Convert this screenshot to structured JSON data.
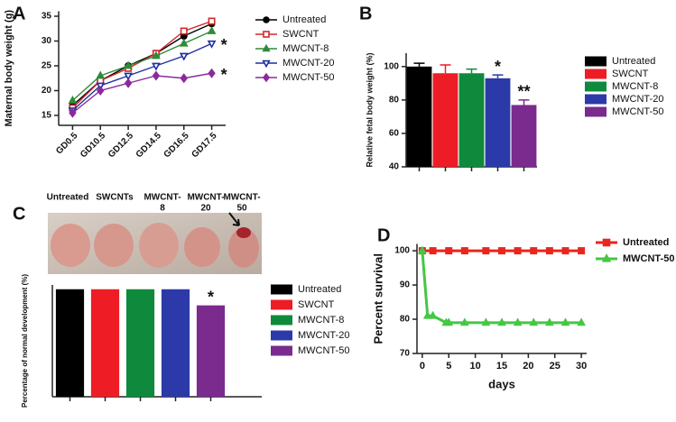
{
  "chart_data": [
    {
      "type": "line",
      "panel": "A",
      "ylabel": "Maternal body weight (g)",
      "categories": [
        "GD0.5",
        "GD10.5",
        "GD12.5",
        "GD14.5",
        "GD16.5",
        "GD17.5"
      ],
      "ylim": [
        13,
        36
      ],
      "yticks": [
        15,
        20,
        25,
        30,
        35
      ],
      "series": [
        {
          "name": "Untreated",
          "color": "#000000",
          "marker": "circle",
          "filled": true,
          "values": [
            17,
            22,
            25,
            27.5,
            31,
            33.5
          ]
        },
        {
          "name": "SWCNT",
          "color": "#d62728",
          "marker": "square",
          "filled": false,
          "values": [
            16.5,
            22,
            24.5,
            27.5,
            32,
            34
          ]
        },
        {
          "name": "MWCNT-8",
          "color": "#2e8b3a",
          "marker": "triangle",
          "filled": true,
          "values": [
            18,
            23,
            25,
            27,
            29.5,
            32
          ]
        },
        {
          "name": "MWCNT-20",
          "color": "#1f2fa0",
          "marker": "triangle-down",
          "filled": false,
          "values": [
            16,
            21,
            23,
            25,
            27,
            29.5
          ]
        },
        {
          "name": "MWCNT-50",
          "color": "#8b2a9b",
          "marker": "diamond",
          "filled": true,
          "values": [
            15.5,
            20,
            21.5,
            23,
            22.5,
            23.5
          ]
        }
      ],
      "annotations": [
        "*",
        "*"
      ]
    },
    {
      "type": "bar",
      "panel": "B",
      "ylabel": "Relative fetal body weight (%)",
      "ylim": [
        40,
        108
      ],
      "yticks": [
        40,
        60,
        80,
        100
      ],
      "series": [
        {
          "name": "Untreated",
          "color": "#000000",
          "values": [
            100
          ],
          "errors": [
            2
          ]
        },
        {
          "name": "SWCNT",
          "color": "#ee1c24",
          "values": [
            96
          ],
          "errors": [
            5
          ]
        },
        {
          "name": "MWCNT-8",
          "color": "#0f8a3c",
          "values": [
            96
          ],
          "errors": [
            2.5
          ]
        },
        {
          "name": "MWCNT-20",
          "color": "#2b3aa8",
          "values": [
            93
          ],
          "errors": [
            2
          ]
        },
        {
          "name": "MWCNT-50",
          "color": "#7b2a8e",
          "values": [
            77
          ],
          "errors": [
            3
          ]
        }
      ],
      "annotations": [
        "*",
        "**"
      ]
    },
    {
      "type": "bar",
      "panel": "C",
      "ylabel": "Percentage of normal development (%)",
      "ylim": [
        0,
        104
      ],
      "photo_labels": [
        [
          "Untreated"
        ],
        [
          "SWCNTs"
        ],
        [
          "MWCNT-",
          "8"
        ],
        [
          "MWCNT-",
          "20"
        ],
        [
          "MWCNT-",
          "50"
        ]
      ],
      "series": [
        {
          "name": "Untreated",
          "color": "#000000",
          "values": [
            100
          ]
        },
        {
          "name": "SWCNT",
          "color": "#ee1c24",
          "values": [
            100
          ]
        },
        {
          "name": "MWCNT-8",
          "color": "#0f8a3c",
          "values": [
            100
          ]
        },
        {
          "name": "MWCNT-20",
          "color": "#2b3aa8",
          "values": [
            100
          ]
        },
        {
          "name": "MWCNT-50",
          "color": "#7b2a8e",
          "values": [
            85
          ]
        }
      ],
      "annotations": [
        "*"
      ]
    },
    {
      "type": "line",
      "panel": "D",
      "xlabel": "days",
      "ylabel": "Percent survival",
      "xlim": [
        -1,
        31
      ],
      "xticks": [
        0,
        5,
        10,
        15,
        20,
        25,
        30
      ],
      "ylim": [
        70,
        102
      ],
      "yticks": [
        70,
        80,
        90,
        100
      ],
      "series": [
        {
          "name": "Untreated",
          "color": "#e8261f",
          "marker": "square",
          "filled": true,
          "x": [
            0,
            2,
            5,
            8,
            12,
            15,
            18,
            21,
            24,
            27,
            30
          ],
          "values": [
            100,
            100,
            100,
            100,
            100,
            100,
            100,
            100,
            100,
            100,
            100
          ]
        },
        {
          "name": "MWCNT-50",
          "color": "#43c843",
          "marker": "triangle",
          "filled": true,
          "x": [
            0,
            1,
            2,
            4.5,
            5,
            8,
            12,
            15,
            18,
            21,
            24,
            27,
            30
          ],
          "values": [
            100,
            81,
            81,
            79,
            79,
            79,
            79,
            79,
            79,
            79,
            79,
            79,
            79
          ]
        }
      ]
    }
  ]
}
